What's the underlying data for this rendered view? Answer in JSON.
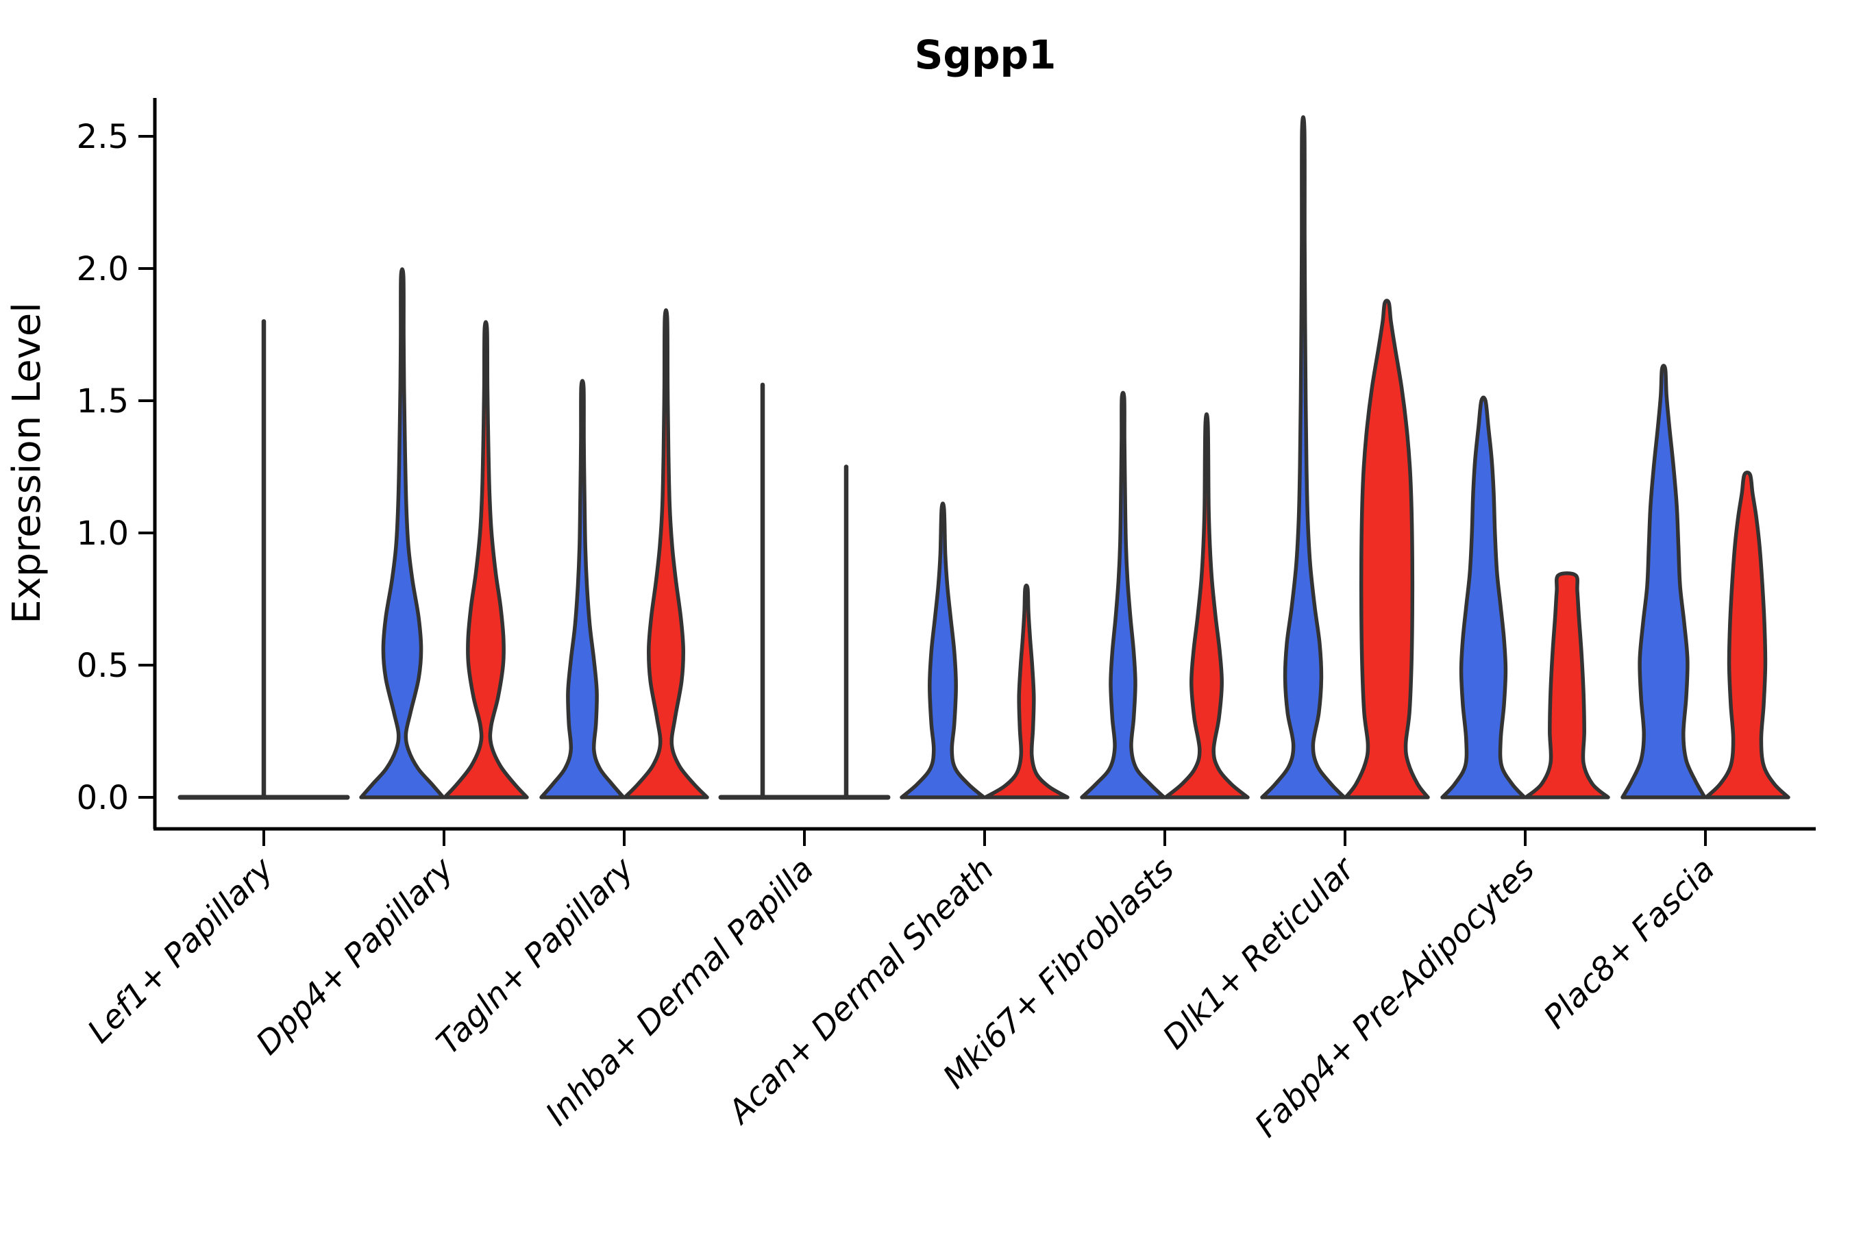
{
  "chart_data": {
    "type": "violin",
    "title": "Sgpp1",
    "xlabel": "",
    "ylabel": "Expression Level",
    "ytick_labels": [
      "0.0",
      "0.5",
      "1.0",
      "1.5",
      "2.0",
      "2.5"
    ],
    "yticks": [
      0.0,
      0.5,
      1.0,
      1.5,
      2.0,
      2.5
    ],
    "ylim": [
      -0.12,
      2.65
    ],
    "grid": false,
    "legend_position": "none",
    "background": "#ffffff",
    "colors": {
      "blue": "#4169E1",
      "red": "#EF2D24",
      "outline": "#333333",
      "axis": "#000000"
    },
    "series_names": [
      "blue",
      "red"
    ],
    "categories": [
      "Lef1+ Papillary",
      "Dpp4+ Papillary",
      "Tagln+ Papillary",
      "Inhba+ Dermal Papilla",
      "Acan+ Dermal Sheath",
      "Mki67+ Fibroblasts",
      "Dlk1+ Reticular",
      "Fabp4+ Pre-Adipocytes",
      "Plac8+ Fascia"
    ],
    "violins": [
      {
        "label": "Lef1+ Papillary",
        "collapsed": true,
        "spikes": [
          {
            "offset": 0,
            "max": 1.8
          }
        ],
        "blue_max": 1.8,
        "red_max": 0.0
      },
      {
        "label": "Dpp4+ Papillary",
        "blue_max": 1.97,
        "red_max": 1.77,
        "blue_profile": [
          [
            0,
            1
          ],
          [
            0.05,
            0.72
          ],
          [
            0.11,
            0.38
          ],
          [
            0.18,
            0.15
          ],
          [
            0.24,
            0.09
          ],
          [
            0.32,
            0.2
          ],
          [
            0.45,
            0.4
          ],
          [
            0.56,
            0.46
          ],
          [
            0.68,
            0.4
          ],
          [
            0.82,
            0.25
          ],
          [
            0.95,
            0.15
          ],
          [
            1.1,
            0.1
          ],
          [
            1.3,
            0.07
          ],
          [
            1.55,
            0.045
          ],
          [
            1.75,
            0.035
          ],
          [
            1.97,
            0.03
          ]
        ],
        "red_profile": [
          [
            0,
            1
          ],
          [
            0.05,
            0.7
          ],
          [
            0.12,
            0.35
          ],
          [
            0.2,
            0.13
          ],
          [
            0.27,
            0.13
          ],
          [
            0.38,
            0.3
          ],
          [
            0.5,
            0.42
          ],
          [
            0.6,
            0.43
          ],
          [
            0.72,
            0.36
          ],
          [
            0.85,
            0.24
          ],
          [
            1.0,
            0.14
          ],
          [
            1.15,
            0.09
          ],
          [
            1.35,
            0.06
          ],
          [
            1.55,
            0.04
          ],
          [
            1.77,
            0.03
          ]
        ]
      },
      {
        "label": "Tagln+ Papillary",
        "blue_max": 1.55,
        "red_max": 1.81,
        "blue_profile": [
          [
            0,
            1
          ],
          [
            0.05,
            0.72
          ],
          [
            0.11,
            0.42
          ],
          [
            0.18,
            0.28
          ],
          [
            0.28,
            0.33
          ],
          [
            0.4,
            0.35
          ],
          [
            0.52,
            0.28
          ],
          [
            0.65,
            0.18
          ],
          [
            0.8,
            0.11
          ],
          [
            0.95,
            0.07
          ],
          [
            1.15,
            0.05
          ],
          [
            1.35,
            0.035
          ],
          [
            1.55,
            0.03
          ]
        ],
        "red_profile": [
          [
            0,
            1
          ],
          [
            0.05,
            0.68
          ],
          [
            0.12,
            0.32
          ],
          [
            0.2,
            0.14
          ],
          [
            0.3,
            0.22
          ],
          [
            0.44,
            0.38
          ],
          [
            0.56,
            0.42
          ],
          [
            0.68,
            0.36
          ],
          [
            0.82,
            0.24
          ],
          [
            0.95,
            0.15
          ],
          [
            1.1,
            0.09
          ],
          [
            1.3,
            0.06
          ],
          [
            1.55,
            0.04
          ],
          [
            1.81,
            0.03
          ]
        ]
      },
      {
        "label": "Inhba+ Dermal Papilla",
        "collapsed": true,
        "spikes": [
          {
            "offset": -61,
            "max": 1.56
          },
          {
            "offset": 61,
            "max": 1.25
          }
        ],
        "blue_max": 1.56,
        "red_max": 1.25
      },
      {
        "label": "Acan+ Dermal Sheath",
        "blue_max": 1.09,
        "red_max": 0.79,
        "blue_profile": [
          [
            0,
            1
          ],
          [
            0.05,
            0.62
          ],
          [
            0.11,
            0.3
          ],
          [
            0.18,
            0.22
          ],
          [
            0.28,
            0.28
          ],
          [
            0.42,
            0.32
          ],
          [
            0.55,
            0.28
          ],
          [
            0.68,
            0.19
          ],
          [
            0.8,
            0.11
          ],
          [
            0.92,
            0.06
          ],
          [
            1.09,
            0.03
          ]
        ],
        "red_profile": [
          [
            0,
            1
          ],
          [
            0.04,
            0.55
          ],
          [
            0.09,
            0.24
          ],
          [
            0.16,
            0.13
          ],
          [
            0.26,
            0.16
          ],
          [
            0.38,
            0.18
          ],
          [
            0.5,
            0.14
          ],
          [
            0.6,
            0.09
          ],
          [
            0.7,
            0.05
          ],
          [
            0.79,
            0.03
          ]
        ]
      },
      {
        "label": "Mki67+ Fibroblasts",
        "blue_max": 1.51,
        "red_max": 1.41,
        "blue_profile": [
          [
            0,
            1
          ],
          [
            0.05,
            0.66
          ],
          [
            0.11,
            0.32
          ],
          [
            0.19,
            0.2
          ],
          [
            0.3,
            0.26
          ],
          [
            0.43,
            0.3
          ],
          [
            0.55,
            0.26
          ],
          [
            0.68,
            0.18
          ],
          [
            0.82,
            0.11
          ],
          [
            0.96,
            0.07
          ],
          [
            1.15,
            0.05
          ],
          [
            1.35,
            0.035
          ],
          [
            1.51,
            0.03
          ]
        ],
        "red_profile": [
          [
            0,
            1
          ],
          [
            0.05,
            0.6
          ],
          [
            0.11,
            0.28
          ],
          [
            0.18,
            0.17
          ],
          [
            0.3,
            0.3
          ],
          [
            0.43,
            0.37
          ],
          [
            0.55,
            0.32
          ],
          [
            0.68,
            0.22
          ],
          [
            0.82,
            0.13
          ],
          [
            0.95,
            0.08
          ],
          [
            1.1,
            0.05
          ],
          [
            1.41,
            0.03
          ]
        ]
      },
      {
        "label": "Dlk1+ Reticular",
        "blue_max": 2.52,
        "red_max": 1.87,
        "blue_profile": [
          [
            0,
            1
          ],
          [
            0.05,
            0.68
          ],
          [
            0.12,
            0.34
          ],
          [
            0.2,
            0.24
          ],
          [
            0.32,
            0.38
          ],
          [
            0.45,
            0.44
          ],
          [
            0.58,
            0.4
          ],
          [
            0.72,
            0.28
          ],
          [
            0.88,
            0.17
          ],
          [
            1.05,
            0.11
          ],
          [
            1.25,
            0.08
          ],
          [
            1.5,
            0.06
          ],
          [
            1.8,
            0.045
          ],
          [
            2.1,
            0.035
          ],
          [
            2.52,
            0.03
          ]
        ],
        "red_profile": [
          [
            0,
            1
          ],
          [
            0.05,
            0.75
          ],
          [
            0.13,
            0.52
          ],
          [
            0.2,
            0.46
          ],
          [
            0.32,
            0.55
          ],
          [
            0.5,
            0.6
          ],
          [
            0.7,
            0.62
          ],
          [
            0.9,
            0.62
          ],
          [
            1.1,
            0.6
          ],
          [
            1.25,
            0.56
          ],
          [
            1.4,
            0.48
          ],
          [
            1.55,
            0.36
          ],
          [
            1.7,
            0.2
          ],
          [
            1.8,
            0.1
          ],
          [
            1.87,
            0.05
          ]
        ]
      },
      {
        "label": "Fabp4+ Pre-Adipocytes",
        "blue_max": 1.5,
        "red_max": 0.84,
        "blue_profile": [
          [
            0,
            1
          ],
          [
            0.05,
            0.7
          ],
          [
            0.12,
            0.44
          ],
          [
            0.22,
            0.42
          ],
          [
            0.35,
            0.5
          ],
          [
            0.48,
            0.54
          ],
          [
            0.6,
            0.5
          ],
          [
            0.72,
            0.42
          ],
          [
            0.85,
            0.33
          ],
          [
            1.0,
            0.28
          ],
          [
            1.15,
            0.25
          ],
          [
            1.28,
            0.2
          ],
          [
            1.4,
            0.12
          ],
          [
            1.5,
            0.05
          ]
        ],
        "red_profile": [
          [
            0,
            1
          ],
          [
            0.05,
            0.62
          ],
          [
            0.13,
            0.4
          ],
          [
            0.25,
            0.42
          ],
          [
            0.4,
            0.4
          ],
          [
            0.55,
            0.35
          ],
          [
            0.68,
            0.29
          ],
          [
            0.78,
            0.25
          ],
          [
            0.84,
            0.21
          ]
        ]
      },
      {
        "label": "Plac8+ Fascia",
        "blue_max": 1.62,
        "red_max": 1.22,
        "blue_profile": [
          [
            0,
            1
          ],
          [
            0.06,
            0.78
          ],
          [
            0.14,
            0.55
          ],
          [
            0.24,
            0.48
          ],
          [
            0.38,
            0.55
          ],
          [
            0.52,
            0.58
          ],
          [
            0.66,
            0.5
          ],
          [
            0.8,
            0.4
          ],
          [
            0.95,
            0.36
          ],
          [
            1.1,
            0.32
          ],
          [
            1.25,
            0.24
          ],
          [
            1.4,
            0.14
          ],
          [
            1.52,
            0.07
          ],
          [
            1.62,
            0.04
          ]
        ],
        "red_profile": [
          [
            0,
            1
          ],
          [
            0.05,
            0.66
          ],
          [
            0.12,
            0.4
          ],
          [
            0.22,
            0.34
          ],
          [
            0.35,
            0.4
          ],
          [
            0.5,
            0.44
          ],
          [
            0.65,
            0.42
          ],
          [
            0.8,
            0.37
          ],
          [
            0.95,
            0.3
          ],
          [
            1.06,
            0.22
          ],
          [
            1.15,
            0.13
          ],
          [
            1.22,
            0.07
          ]
        ]
      }
    ]
  }
}
